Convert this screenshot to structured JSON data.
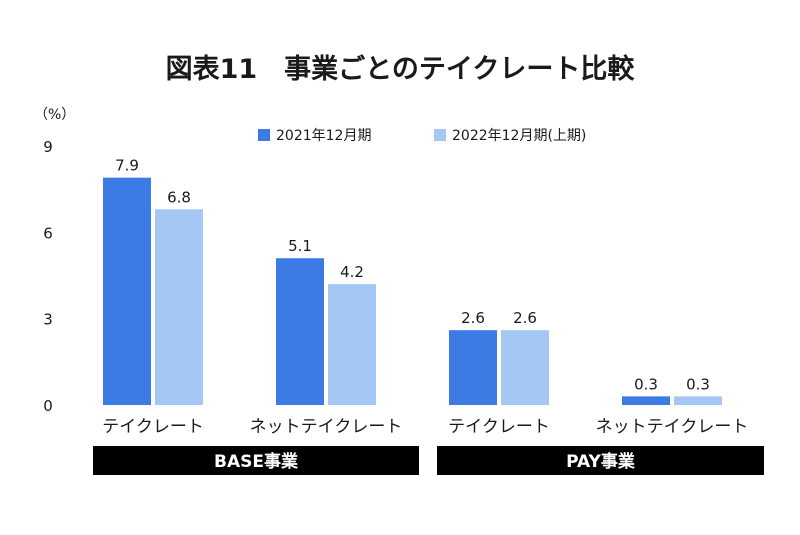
{
  "chart_data": {
    "type": "bar",
    "title": "図表11　事業ごとのテイクレート比較",
    "unit_label": "（%）",
    "ylim": [
      0,
      9
    ],
    "yticks": [
      0,
      3,
      6,
      9
    ],
    "grid": false,
    "legend_position": "top-center",
    "categories": [
      "テイクレート",
      "ネットテイクレート",
      "テイクレート",
      "ネットテイクレート"
    ],
    "groups": [
      {
        "label": "BASE事業",
        "categories": [
          0,
          1
        ]
      },
      {
        "label": "PAY事業",
        "categories": [
          2,
          3
        ]
      }
    ],
    "series": [
      {
        "name": "2021年12月期",
        "color": "#3b7be3",
        "values": [
          7.9,
          5.1,
          2.6,
          0.3
        ],
        "labels": [
          "7.9",
          "5.1",
          "2.6",
          "0.3"
        ]
      },
      {
        "name": "2022年12月期(上期)",
        "color": "#a5c7f4",
        "values": [
          6.8,
          4.2,
          2.6,
          0.3
        ],
        "labels": [
          "6.8",
          "4.2",
          "2.6",
          "0.3"
        ]
      }
    ],
    "group_band_color": "#000000",
    "group_text_color": "#ffffff"
  }
}
